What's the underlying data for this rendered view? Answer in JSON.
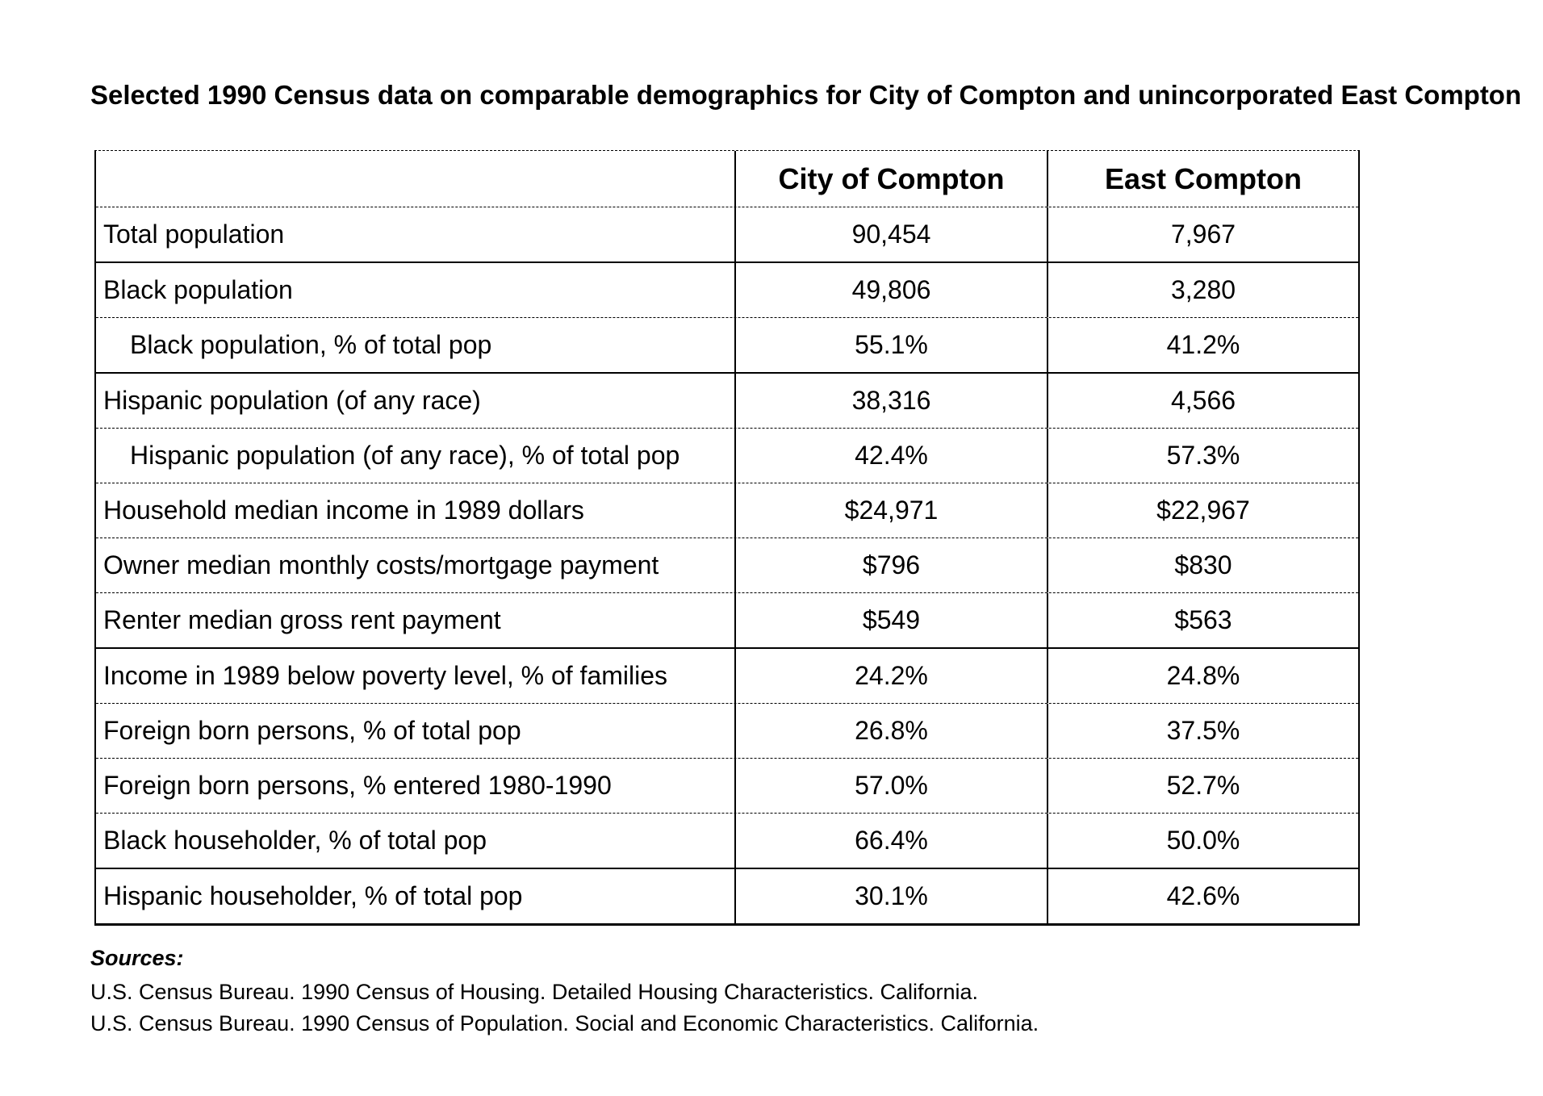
{
  "title": "Selected 1990 Census data on comparable demographics for City of Compton and unincorporated East Compton",
  "table": {
    "columns": {
      "label": "",
      "city": "City of Compton",
      "east": "East Compton"
    },
    "rows": [
      {
        "label": "Total population",
        "indent": false,
        "city": "90,454",
        "east": "7,967",
        "divider": "solid"
      },
      {
        "label": "Black population",
        "indent": false,
        "city": "49,806",
        "east": "3,280",
        "divider": "dashed"
      },
      {
        "label": "Black population, % of total pop",
        "indent": true,
        "city": "55.1%",
        "east": "41.2%",
        "divider": "solid"
      },
      {
        "label": "Hispanic population (of any race)",
        "indent": false,
        "city": "38,316",
        "east": "4,566",
        "divider": "dashed"
      },
      {
        "label": "Hispanic population (of any race), % of total pop",
        "indent": true,
        "city": "42.4%",
        "east": "57.3%",
        "divider": "dashed"
      },
      {
        "label": "Household median income in 1989 dollars",
        "indent": false,
        "city": "$24,971",
        "east": "$22,967",
        "divider": "dashed"
      },
      {
        "label": "Owner median monthly costs/mortgage payment",
        "indent": false,
        "city": "$796",
        "east": "$830",
        "divider": "dashed"
      },
      {
        "label": "Renter median gross rent payment",
        "indent": false,
        "city": "$549",
        "east": "$563",
        "divider": "solid"
      },
      {
        "label": "Income in 1989 below poverty level, % of families",
        "indent": false,
        "city": "24.2%",
        "east": "24.8%",
        "divider": "dashed"
      },
      {
        "label": "Foreign born persons, % of total pop",
        "indent": false,
        "city": "26.8%",
        "east": "37.5%",
        "divider": "dashed"
      },
      {
        "label": "Foreign born persons, % entered 1980-1990",
        "indent": false,
        "city": "57.0%",
        "east": "52.7%",
        "divider": "dashed"
      },
      {
        "label": "Black householder, % of total pop",
        "indent": false,
        "city": "66.4%",
        "east": "50.0%",
        "divider": "solid"
      },
      {
        "label": "Hispanic householder, % of total pop",
        "indent": false,
        "city": "30.1%",
        "east": "42.6%",
        "divider": "none"
      }
    ]
  },
  "sources": {
    "heading": "Sources:",
    "lines": [
      "U.S. Census Bureau. 1990 Census of Housing. Detailed Housing Characteristics. California.",
      "U.S. Census Bureau. 1990 Census of Population. Social and Economic Characteristics. California."
    ]
  }
}
